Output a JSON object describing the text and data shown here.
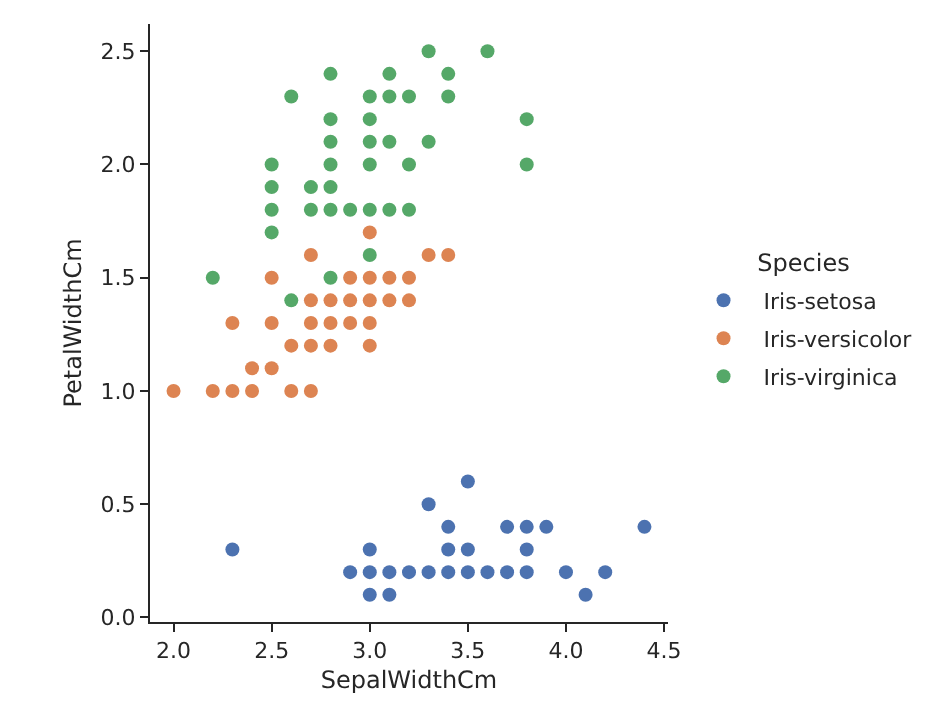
{
  "chart_data": {
    "type": "scatter",
    "xlabel": "SepalWidthCm",
    "ylabel": "PetalWidthCm",
    "legend_title": "Species",
    "series": [
      {
        "name": "Iris-setosa",
        "color": "#4c72b0",
        "x": [
          3.0,
          3.1,
          4.1,
          2.9,
          3.0,
          3.1,
          3.2,
          3.3,
          3.4,
          3.5,
          3.6,
          3.7,
          3.8,
          4.0,
          4.2,
          2.3,
          3.0,
          3.4,
          3.5,
          3.8,
          3.4,
          3.7,
          3.8,
          3.9,
          4.4,
          3.3,
          3.5
        ],
        "values": [
          0.1,
          0.1,
          0.1,
          0.2,
          0.2,
          0.2,
          0.2,
          0.2,
          0.2,
          0.2,
          0.2,
          0.2,
          0.2,
          0.2,
          0.2,
          0.3,
          0.3,
          0.3,
          0.3,
          0.3,
          0.4,
          0.4,
          0.4,
          0.4,
          0.4,
          0.5,
          0.6
        ]
      },
      {
        "name": "Iris-versicolor",
        "color": "#dd8452",
        "x": [
          2.0,
          2.2,
          2.3,
          2.4,
          2.6,
          2.7,
          2.4,
          2.5,
          2.6,
          2.7,
          2.8,
          3.0,
          2.3,
          2.5,
          2.7,
          2.8,
          2.9,
          3.0,
          2.7,
          2.8,
          2.9,
          3.0,
          3.1,
          3.2,
          2.5,
          2.9,
          3.0,
          3.1,
          3.2,
          2.7,
          3.3,
          3.4,
          3.0
        ],
        "values": [
          1.0,
          1.0,
          1.0,
          1.0,
          1.0,
          1.0,
          1.1,
          1.1,
          1.2,
          1.2,
          1.2,
          1.2,
          1.3,
          1.3,
          1.3,
          1.3,
          1.3,
          1.3,
          1.4,
          1.4,
          1.4,
          1.4,
          1.4,
          1.4,
          1.5,
          1.5,
          1.5,
          1.5,
          1.5,
          1.6,
          1.6,
          1.6,
          1.7
        ]
      },
      {
        "name": "Iris-virginica",
        "color": "#55a868",
        "x": [
          2.6,
          2.2,
          2.8,
          3.0,
          2.5,
          2.5,
          2.7,
          2.8,
          2.9,
          3.0,
          3.1,
          3.2,
          2.5,
          2.7,
          2.8,
          2.5,
          2.8,
          3.0,
          3.2,
          3.8,
          2.8,
          3.0,
          3.1,
          3.3,
          2.8,
          3.0,
          3.8,
          2.6,
          3.0,
          3.1,
          3.2,
          3.4,
          2.8,
          3.1,
          3.4,
          3.3,
          3.6
        ],
        "values": [
          1.4,
          1.5,
          1.5,
          1.6,
          1.7,
          1.8,
          1.8,
          1.8,
          1.8,
          1.8,
          1.8,
          1.8,
          1.9,
          1.9,
          1.9,
          2.0,
          2.0,
          2.0,
          2.0,
          2.0,
          2.1,
          2.1,
          2.1,
          2.1,
          2.2,
          2.2,
          2.2,
          2.3,
          2.3,
          2.3,
          2.3,
          2.3,
          2.4,
          2.4,
          2.4,
          2.5,
          2.5
        ]
      }
    ],
    "xlim": [
      1.88,
      4.52
    ],
    "xticks": [
      {
        "value": 2,
        "label": "2.0"
      },
      2.5,
      {
        "value": 3,
        "label": "3.0"
      },
      3.5,
      {
        "value": 4,
        "label": "4.0"
      },
      4.5
    ],
    "ylim": [
      -0.02,
      2.62
    ],
    "yticks": [
      {
        "value": 0,
        "label": "0.0"
      },
      0.5,
      {
        "value": 1,
        "label": "1.0"
      },
      1.5,
      {
        "value": 2,
        "label": "2.0"
      },
      2.5
    ],
    "grid": false,
    "legend": "right",
    "marker": "circle"
  }
}
